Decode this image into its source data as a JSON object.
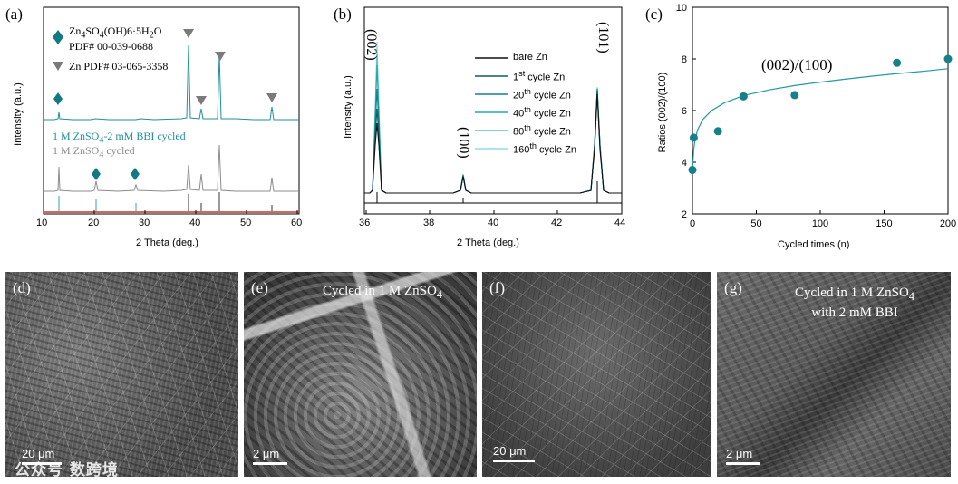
{
  "panels": {
    "a": {
      "letter": "(a)",
      "legend1_formula": "Zn4SO4(OH)6·5H2O",
      "legend1_pdf": "PDF# 00-039-0688",
      "legend2": "Zn PDF# 03-065-3358",
      "label_bbi": "1 M ZnSO4-2 mM BBI cycled",
      "label_znso4": "1 M ZnSO4 cycled",
      "xlabel": "2 Theta (deg.)",
      "ylabel": "Intensity (a.u.)",
      "xticks": [
        "10",
        "20",
        "30",
        "40",
        "50",
        "60"
      ],
      "colors": {
        "bbi": "#1f8f9a",
        "znso4": "#8c8c8c",
        "marker_diamond": "#137a84",
        "marker_triangle": "#7a7a7a",
        "ref_zn": "#333333",
        "ref_znso4": "#2aa5b0"
      }
    },
    "b": {
      "letter": "(b)",
      "xlabel": "2 Theta (deg.)",
      "ylabel": "Intensity (a.u.)",
      "xticks": [
        "36",
        "38",
        "40",
        "42",
        "44"
      ],
      "peak_002": "(002)",
      "peak_100": "(100)",
      "peak_101": "(101)",
      "legend": [
        "bare Zn",
        "1st cycle Zn",
        "20th cycle Zn",
        "40th cycle Zn",
        "80th cycle Zn",
        "160th cycle Zn"
      ],
      "legend_colors": [
        "#111111",
        "#0d5f66",
        "#14828b",
        "#2aa5b0",
        "#57c3cc",
        "#8fdbe2"
      ]
    },
    "c": {
      "letter": "(c)"
    },
    "d": {
      "letter": "(d)",
      "scale": "20 μm"
    },
    "e": {
      "letter": "(e)",
      "caption": "Cycled in 1 M ZnSO4",
      "scale": "2 μm"
    },
    "f": {
      "letter": "(f)",
      "scale": "20 μm"
    },
    "g": {
      "letter": "(g)",
      "caption_line1": "Cycled in 1 M ZnSO4",
      "caption_line2": "with 2 mM  BBI",
      "scale": "2 μm"
    }
  },
  "watermark": "公众号 数跨境",
  "chart_data": [
    {
      "type": "line",
      "panel": "c",
      "title": "(002)/(100)",
      "xlabel": "Cycled times (n)",
      "ylabel": "Ratios (002)/(100)",
      "xlim": [
        0,
        200
      ],
      "ylim": [
        2,
        10
      ],
      "xticks": [
        0,
        50,
        100,
        150,
        200
      ],
      "yticks": [
        2,
        4,
        6,
        8,
        10
      ],
      "series": [
        {
          "kind": "scatter",
          "x": [
            0,
            1,
            20,
            40,
            80,
            160,
            200
          ],
          "y": [
            3.7,
            4.95,
            5.2,
            6.55,
            6.6,
            7.85,
            8.0
          ]
        },
        {
          "kind": "fit",
          "x": [
            0,
            1,
            2,
            4,
            8,
            15,
            25,
            40,
            60,
            80,
            100,
            120,
            140,
            160,
            180,
            200
          ],
          "y": [
            3.7,
            4.5,
            4.85,
            5.25,
            5.65,
            6.0,
            6.3,
            6.58,
            6.8,
            6.97,
            7.1,
            7.22,
            7.33,
            7.43,
            7.52,
            7.62
          ]
        }
      ],
      "colors": {
        "point": "#16808a",
        "fit": "#1f9aa5"
      }
    }
  ]
}
